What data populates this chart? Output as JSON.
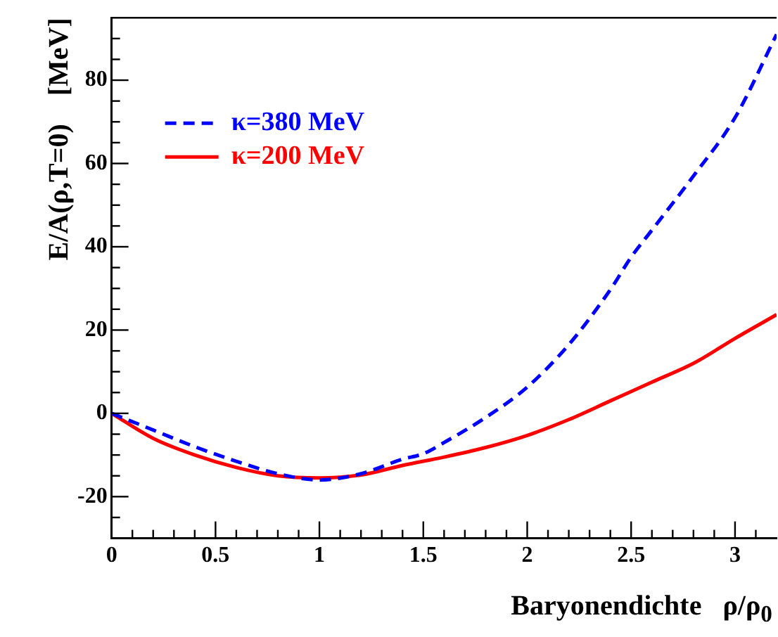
{
  "chart_data": {
    "type": "line",
    "xlabel": "Baryonendichte   ρ/ρ$_{0}$",
    "ylabel": "E/A(ρ,T=0)    [MeV]",
    "xlim": [
      0,
      3.2
    ],
    "ylim": [
      -30,
      95
    ],
    "xticks": [
      0,
      {
        "value": 0.1,
        "label": null
      },
      {
        "value": 0.2,
        "label": null
      },
      {
        "value": 0.3,
        "label": null
      },
      {
        "value": 0.4,
        "label": null
      },
      0.5,
      {
        "value": 0.6,
        "label": null
      },
      {
        "value": 0.7,
        "label": null
      },
      {
        "value": 0.8,
        "label": null
      },
      {
        "value": 0.9,
        "label": null
      },
      1,
      {
        "value": 1.1,
        "label": null
      },
      {
        "value": 1.2,
        "label": null
      },
      {
        "value": 1.3,
        "label": null
      },
      {
        "value": 1.4,
        "label": null
      },
      1.5,
      {
        "value": 1.6,
        "label": null
      },
      {
        "value": 1.7,
        "label": null
      },
      {
        "value": 1.8,
        "label": null
      },
      {
        "value": 1.9,
        "label": null
      },
      2,
      {
        "value": 2.1,
        "label": null
      },
      {
        "value": 2.2,
        "label": null
      },
      {
        "value": 2.3,
        "label": null
      },
      {
        "value": 2.4,
        "label": null
      },
      2.5,
      {
        "value": 2.6,
        "label": null
      },
      {
        "value": 2.7,
        "label": null
      },
      {
        "value": 2.8,
        "label": null
      },
      {
        "value": 2.9,
        "label": null
      },
      3,
      {
        "value": 3.1,
        "label": null
      }
    ],
    "yticks": [
      {
        "value": -25,
        "label": null
      },
      -20,
      {
        "value": -15,
        "label": null
      },
      {
        "value": -10,
        "label": null
      },
      {
        "value": -5,
        "label": null
      },
      0,
      {
        "value": 5,
        "label": null
      },
      {
        "value": 10,
        "label": null
      },
      {
        "value": 15,
        "label": null
      },
      20,
      {
        "value": 25,
        "label": null
      },
      {
        "value": 30,
        "label": null
      },
      {
        "value": 35,
        "label": null
      },
      40,
      {
        "value": 45,
        "label": null
      },
      {
        "value": 50,
        "label": null
      },
      {
        "value": 55,
        "label": null
      },
      60,
      {
        "value": 65,
        "label": null
      },
      {
        "value": 70,
        "label": null
      },
      {
        "value": 75,
        "label": null
      },
      80,
      {
        "value": 85,
        "label": null
      },
      {
        "value": 90,
        "label": null
      }
    ],
    "grid": false,
    "legend": "top left",
    "marker": "none",
    "series": [
      {
        "name": "κ=380 MeV",
        "color": "#0000ff",
        "line_style": "dashed",
        "x": [
          0,
          0.2,
          0.4,
          0.6,
          0.8,
          1.0,
          1.2,
          1.4,
          1.5,
          1.6,
          1.8,
          2.0,
          2.2,
          2.4,
          2.5,
          2.6,
          2.8,
          3.0,
          3.2
        ],
        "values": [
          0,
          -4,
          -8,
          -11.5,
          -14.5,
          -16,
          -14.5,
          -11,
          -9.7,
          -7,
          -1,
          6.3,
          16.5,
          29.7,
          37.5,
          44,
          57,
          71,
          91
        ]
      },
      {
        "name": "κ=200 MeV",
        "color": "#ff0000",
        "line_style": "solid",
        "x": [
          0,
          0.2,
          0.4,
          0.6,
          0.8,
          1.0,
          1.2,
          1.4,
          1.6,
          1.8,
          2.0,
          2.2,
          2.4,
          2.6,
          2.8,
          3.0,
          3.2
        ],
        "values": [
          0,
          -6,
          -10,
          -13,
          -15,
          -15.5,
          -14.8,
          -12.5,
          -10.5,
          -8.2,
          -5.3,
          -1.5,
          3,
          7.5,
          12,
          18,
          23.7
        ]
      }
    ]
  }
}
